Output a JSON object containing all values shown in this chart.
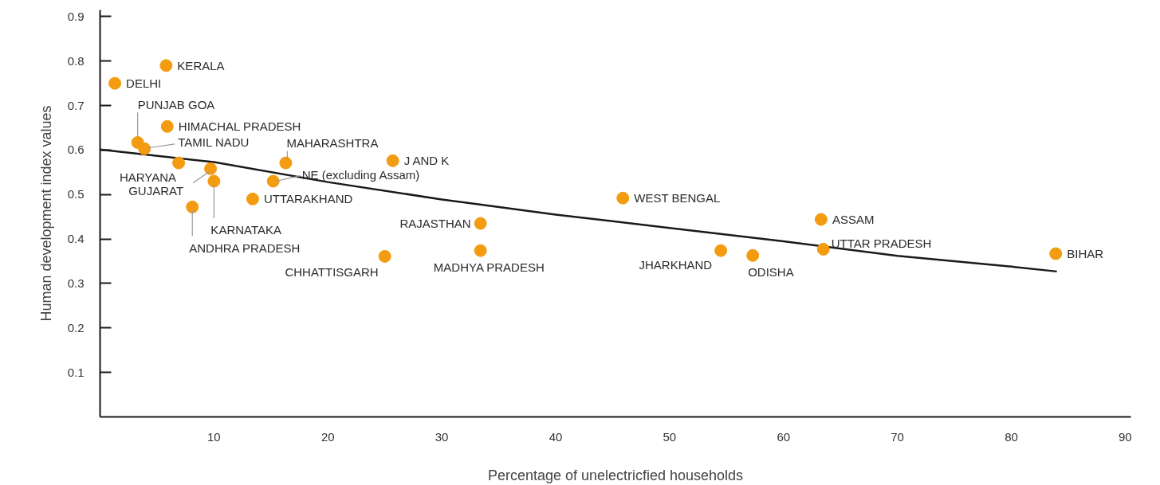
{
  "chart_data": {
    "type": "scatter",
    "xlabel": "Percentage of unelectricfied households",
    "ylabel": "Human development index values",
    "xlim": [
      0,
      90.5
    ],
    "ylim": [
      0,
      0.915
    ],
    "xticks": [
      10,
      20,
      30,
      40,
      50,
      60,
      70,
      80,
      90
    ],
    "yticks": [
      0.1,
      0.2,
      0.3,
      0.4,
      0.5,
      0.6,
      0.7,
      0.8,
      0.9
    ],
    "grid": false,
    "series": [
      {
        "marker": "circle",
        "color": "#f39c12",
        "x": [
          1.3,
          5.8,
          3.3,
          3.9,
          5.9,
          6.9,
          9.7,
          10.0,
          8.1,
          13.4,
          15.2,
          16.3,
          25.7,
          25.0,
          33.4,
          33.4,
          45.9,
          54.5,
          57.3,
          63.3,
          63.5,
          83.9
        ],
        "values": [
          0.75,
          0.79,
          0.617,
          0.603,
          0.653,
          0.571,
          0.558,
          0.53,
          0.472,
          0.49,
          0.53,
          0.571,
          0.576,
          0.361,
          0.435,
          0.374,
          0.492,
          0.374,
          0.363,
          0.444,
          0.377,
          0.367
        ]
      },
      {
        "type": "line",
        "line_style": "solid",
        "color": "#1a1a1a",
        "x": [
          0,
          10,
          20,
          30,
          40,
          50,
          60,
          70,
          80,
          84
        ],
        "values": [
          0.601,
          0.573,
          0.528,
          0.489,
          0.455,
          0.425,
          0.395,
          0.362,
          0.338,
          0.327
        ]
      }
    ],
    "annotations": [
      {
        "text": "DELHI",
        "x": 1.3,
        "y": 0.75
      },
      {
        "text": "KERALA",
        "x": 5.8,
        "y": 0.79
      },
      {
        "text": "PUNJAB GOA",
        "x": 3.3,
        "y": 0.617
      },
      {
        "text": "TAMIL NADU",
        "x": 3.9,
        "y": 0.603
      },
      {
        "text": "HIMACHAL PRADESH",
        "x": 5.9,
        "y": 0.653
      },
      {
        "text": "HARYANA",
        "x": 6.9,
        "y": 0.571
      },
      {
        "text": "GUJARAT",
        "x": 9.7,
        "y": 0.558
      },
      {
        "text": "KARNATAKA",
        "x": 10.0,
        "y": 0.53
      },
      {
        "text": "ANDHRA PRADESH",
        "x": 8.1,
        "y": 0.472
      },
      {
        "text": "UTTARAKHAND",
        "x": 13.4,
        "y": 0.49
      },
      {
        "text": "NE (excluding Assam)",
        "x": 15.2,
        "y": 0.53
      },
      {
        "text": "MAHARASHTRA",
        "x": 16.3,
        "y": 0.571
      },
      {
        "text": "J AND K",
        "x": 25.7,
        "y": 0.576
      },
      {
        "text": "CHHATTISGARH",
        "x": 25.0,
        "y": 0.361
      },
      {
        "text": "RAJASTHAN",
        "x": 33.4,
        "y": 0.435
      },
      {
        "text": "MADHYA PRADESH",
        "x": 33.4,
        "y": 0.374
      },
      {
        "text": "WEST BENGAL",
        "x": 45.9,
        "y": 0.492
      },
      {
        "text": "JHARKHAND",
        "x": 54.5,
        "y": 0.374
      },
      {
        "text": "ODISHA",
        "x": 57.3,
        "y": 0.363
      },
      {
        "text": "ASSAM",
        "x": 63.3,
        "y": 0.444
      },
      {
        "text": "UTTAR PRADESH",
        "x": 63.5,
        "y": 0.377
      },
      {
        "text": "BIHAR",
        "x": 83.9,
        "y": 0.367
      }
    ]
  }
}
